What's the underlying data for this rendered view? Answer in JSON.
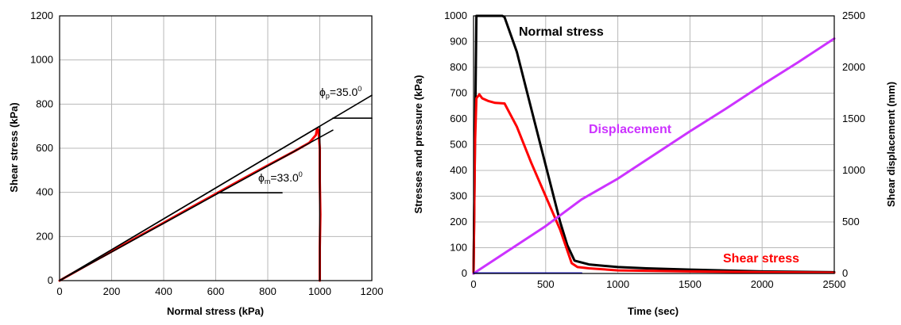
{
  "chart_data": [
    {
      "type": "line",
      "xlabel": "Normal stress (kPa)",
      "ylabel": "Shear stress (kPa)",
      "xlim": [
        0,
        1200
      ],
      "ylim": [
        0,
        1200
      ],
      "xticks": [
        0,
        200,
        400,
        600,
        800,
        1000,
        1200
      ],
      "yticks": [
        0,
        200,
        400,
        600,
        800,
        1000,
        1200
      ],
      "grid": true,
      "annotations": [
        {
          "label_symbol": "ϕ",
          "label_sub": "p",
          "label_value": "=35.0",
          "label_sup": "0"
        },
        {
          "label_symbol": "ϕ",
          "label_sub": "m",
          "label_value": "=33.0",
          "label_sup": "0"
        }
      ],
      "series": [
        {
          "color": "#ff0000",
          "x": [
            0,
            100,
            200,
            300,
            400,
            500,
            600,
            700,
            800,
            900,
            960,
            985,
            990,
            995,
            1000,
            1000,
            1002,
            1000,
            1000
          ],
          "y": [
            0,
            67,
            132,
            198,
            262,
            328,
            393,
            458,
            522,
            585,
            625,
            660,
            690,
            680,
            600,
            450,
            300,
            150,
            0
          ]
        },
        {
          "color": "#000000",
          "x": [
            0,
            100,
            200,
            300,
            400,
            500,
            600,
            700,
            800,
            900,
            1000,
            1000,
            1000
          ],
          "y": [
            0,
            70,
            140,
            210,
            280,
            350,
            420,
            490,
            560,
            630,
            700,
            350,
            0
          ]
        },
        {
          "color": "#000000",
          "x": [
            0,
            1200
          ],
          "y": [
            0,
            840
          ]
        },
        {
          "color": "#000000",
          "x": [
            0,
            1050
          ],
          "y": [
            0,
            682
          ]
        },
        {
          "color": "#000000",
          "x": [
            1050,
            1200
          ],
          "y": [
            736,
            736
          ]
        },
        {
          "color": "#000000",
          "x": [
            608,
            855
          ],
          "y": [
            398,
            398
          ]
        }
      ]
    },
    {
      "type": "line",
      "xlabel": "Time (sec)",
      "ylabel": "Stresses and pressure (kPa)",
      "ylabel_right": "Shear displacement (mm)",
      "xlim": [
        0,
        2500
      ],
      "ylim": [
        0,
        1000
      ],
      "ylim_right": [
        0,
        2500
      ],
      "xticks": [
        0,
        500,
        1000,
        1500,
        2000,
        2500
      ],
      "yticks": [
        0,
        100,
        200,
        300,
        400,
        500,
        600,
        700,
        800,
        900,
        1000
      ],
      "yticks_right": [
        0,
        500,
        1000,
        1500,
        2000,
        2500
      ],
      "grid": true,
      "series": [
        {
          "name": "Normal stress",
          "color": "#000000",
          "axis": "left",
          "x": [
            0,
            20,
            100,
            200,
            215,
            300,
            400,
            500,
            600,
            650,
            700,
            800,
            1000,
            1200,
            1500,
            2000,
            2500
          ],
          "y": [
            0,
            1000,
            1000,
            1000,
            995,
            860,
            640,
            420,
            200,
            110,
            50,
            35,
            25,
            20,
            15,
            8,
            5
          ]
        },
        {
          "name": "Shear stress",
          "color": "#ff0000",
          "axis": "left",
          "x": [
            0,
            10,
            20,
            40,
            60,
            100,
            150,
            215,
            300,
            400,
            500,
            600,
            680,
            720,
            800,
            1000,
            1500,
            2000,
            2500
          ],
          "y": [
            0,
            500,
            680,
            695,
            680,
            670,
            662,
            660,
            570,
            430,
            300,
            170,
            40,
            25,
            20,
            12,
            8,
            5,
            3
          ]
        },
        {
          "name": "Displacement",
          "color": "#cc33ff",
          "axis": "right",
          "x": [
            0,
            250,
            500,
            750,
            1000,
            1250,
            1500,
            1750,
            2000,
            2250,
            2500
          ],
          "y": [
            0,
            230,
            460,
            720,
            920,
            1150,
            1380,
            1600,
            1830,
            2050,
            2280
          ]
        },
        {
          "color": "#0000cc",
          "axis": "left",
          "x": [
            0,
            750
          ],
          "y": [
            2,
            2
          ]
        }
      ]
    }
  ]
}
